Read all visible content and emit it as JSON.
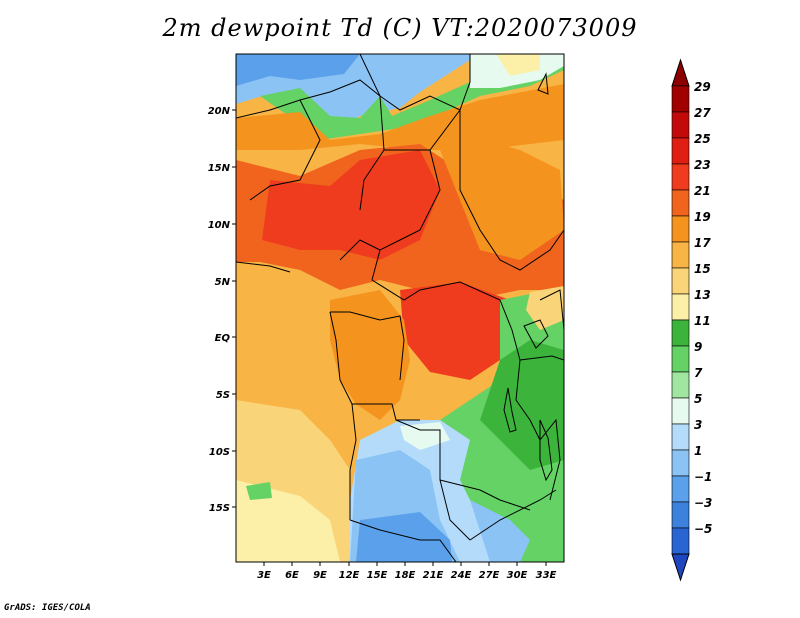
{
  "title": "2m dewpoint Td (C) VT:2020073009",
  "credit": "GrADS: IGES/COLA",
  "map": {
    "variable": "2m dewpoint",
    "units": "C",
    "valid_time": "2020073009",
    "lat_labels": [
      "20N",
      "15N",
      "10N",
      "5N",
      "EQ",
      "5S",
      "10S",
      "15S"
    ],
    "lon_labels": [
      "3E",
      "6E",
      "9E",
      "12E",
      "15E",
      "18E",
      "21E",
      "24E",
      "27E",
      "30E",
      "33E"
    ]
  },
  "colorbar": {
    "levels": [
      "29",
      "27",
      "25",
      "23",
      "21",
      "19",
      "17",
      "15",
      "13",
      "11",
      "9",
      "7",
      "5",
      "3",
      "1",
      "−1",
      "−3",
      "−5"
    ],
    "colors": [
      "#a00000",
      "#c30a0a",
      "#e11e14",
      "#f03c1e",
      "#f0641e",
      "#f4941e",
      "#f8b444",
      "#fad478",
      "#fcf0a8",
      "#3cb43c",
      "#64d264",
      "#a0e6a0",
      "#e6faf0",
      "#b4dcfa",
      "#8cc3f5",
      "#5aa0eb",
      "#3c82dc",
      "#2864d2"
    ],
    "top_color": "#8c0000",
    "bottom_color": "#1e46be"
  }
}
